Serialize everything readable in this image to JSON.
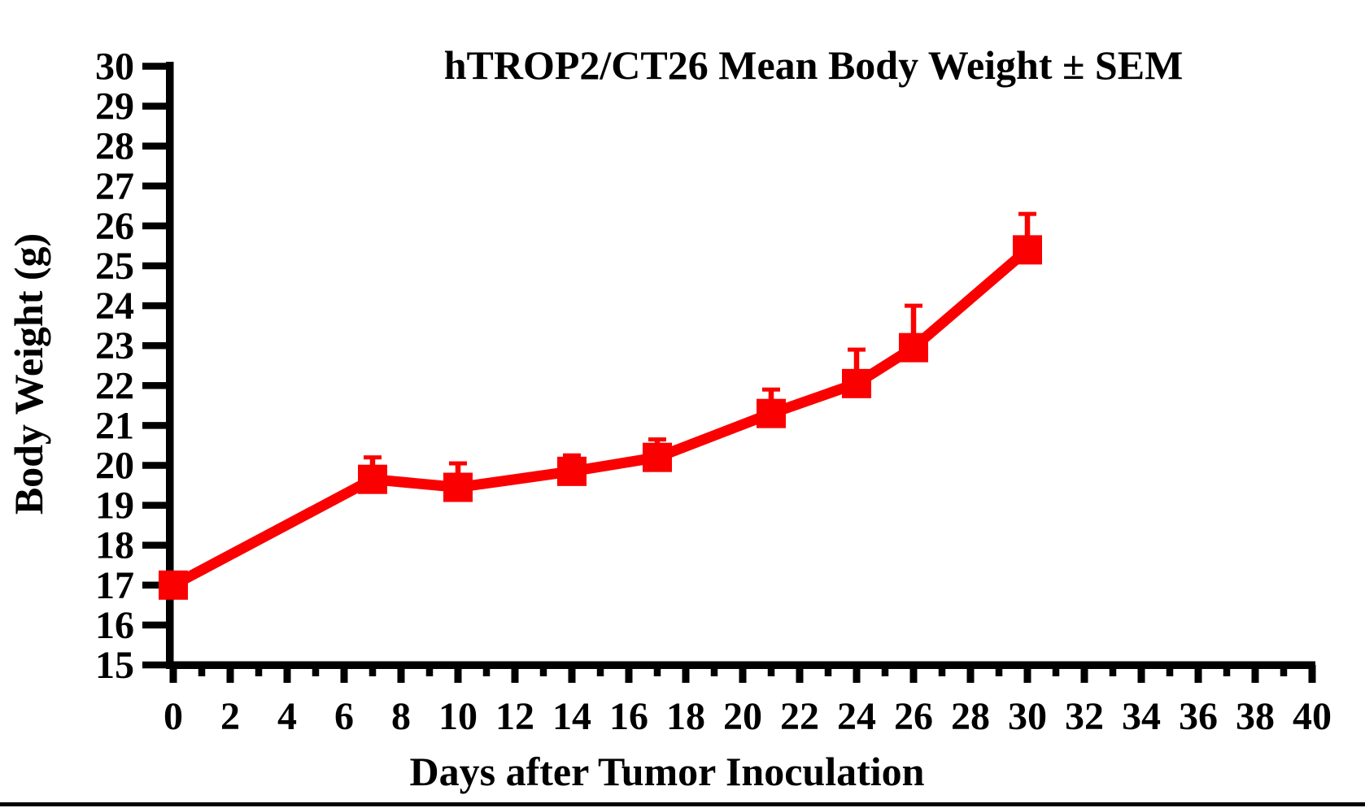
{
  "chart_data": {
    "type": "line",
    "title": "hTROP2/CT26 Mean Body Weight ± SEM",
    "xlabel": "Days after Tumor Inoculation",
    "ylabel": "Body Weight (g)",
    "xlim": [
      0,
      40
    ],
    "ylim": [
      15,
      30
    ],
    "grid": false,
    "legend": "none",
    "error_bars": "upper-SEM-only",
    "xticks_major": [
      0,
      2,
      4,
      6,
      8,
      10,
      12,
      14,
      16,
      18,
      20,
      22,
      24,
      26,
      28,
      30,
      32,
      34,
      36,
      38,
      40
    ],
    "xticks_minor": [
      1,
      3,
      5,
      7,
      9,
      11,
      13,
      15,
      17,
      19,
      21,
      23,
      25,
      27,
      29,
      31,
      33,
      35,
      37,
      39
    ],
    "yticks": [
      15,
      16,
      17,
      18,
      19,
      20,
      21,
      22,
      23,
      24,
      25,
      26,
      27,
      28,
      29,
      30
    ],
    "series": [
      {
        "name": "hTROP2/CT26 mean body weight",
        "color": "#fa0000",
        "marker": "square",
        "points": [
          {
            "x": 0,
            "y": 17.0,
            "sem": 0.1
          },
          {
            "x": 7,
            "y": 19.65,
            "sem": 0.55
          },
          {
            "x": 10,
            "y": 19.45,
            "sem": 0.6
          },
          {
            "x": 14,
            "y": 19.85,
            "sem": 0.4
          },
          {
            "x": 17,
            "y": 20.2,
            "sem": 0.45
          },
          {
            "x": 21,
            "y": 21.3,
            "sem": 0.6
          },
          {
            "x": 24,
            "y": 22.05,
            "sem": 0.85
          },
          {
            "x": 26,
            "y": 22.95,
            "sem": 1.05
          },
          {
            "x": 30,
            "y": 25.4,
            "sem": 0.9
          }
        ]
      }
    ],
    "axis_color": "#000000"
  }
}
